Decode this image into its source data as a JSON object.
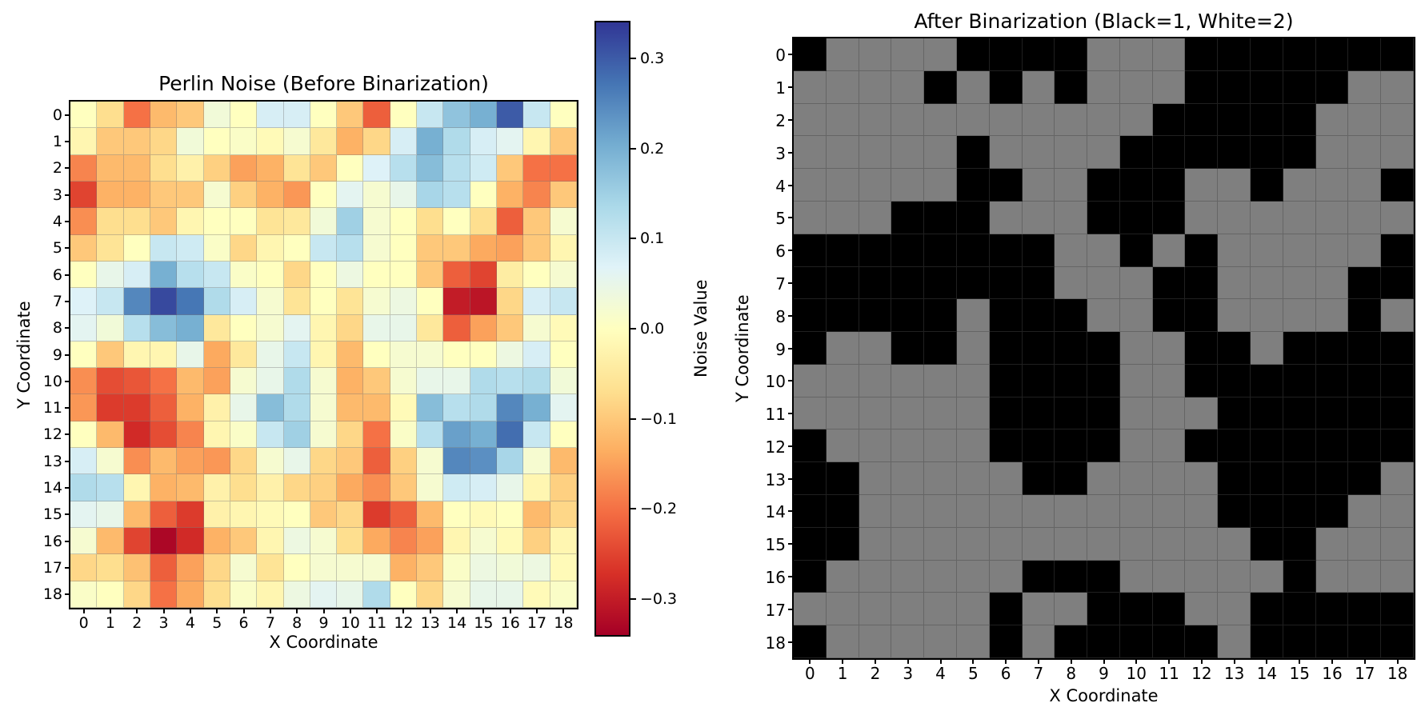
{
  "figure": {
    "background": "#ffffff"
  },
  "left_plot": {
    "title": "Perlin Noise (Before Binarization)",
    "xlabel": "X Coordinate",
    "ylabel": "Y Coordinate"
  },
  "right_plot": {
    "title": "After Binarization (Black=1, White=2)",
    "xlabel": "X Coordinate",
    "ylabel": "Y Coordinate"
  },
  "colorbar": {
    "label": "Noise Value",
    "vmin": -0.34,
    "vmax": 0.34,
    "tick_labels": [
      "0.3",
      "0.2",
      "0.1",
      "0.0",
      "−0.1",
      "−0.2",
      "−0.3"
    ],
    "tick_values": [
      0.3,
      0.2,
      0.1,
      0.0,
      -0.1,
      -0.2,
      -0.3
    ],
    "colors_low_to_high": [
      "#a50026",
      "#d73027",
      "#f46d43",
      "#fdae61",
      "#fee090",
      "#ffffbf",
      "#e0f3f8",
      "#abd9e9",
      "#74add1",
      "#4575b4",
      "#313695"
    ]
  },
  "chart_data": [
    {
      "type": "heatmap",
      "title": "Perlin Noise (Before Binarization)",
      "xlabel": "X Coordinate",
      "ylabel": "Y Coordinate",
      "x": [
        0,
        1,
        2,
        3,
        4,
        5,
        6,
        7,
        8,
        9,
        10,
        11,
        12,
        13,
        14,
        15,
        16,
        17,
        18
      ],
      "y": [
        0,
        1,
        2,
        3,
        4,
        5,
        6,
        7,
        8,
        9,
        10,
        11,
        12,
        13,
        14,
        15,
        16,
        17,
        18
      ],
      "colormap": "RdYlBu",
      "vmin": -0.34,
      "vmax": 0.34,
      "colorbar_label": "Noise Value",
      "values": [
        [
          0.0,
          -0.07,
          -0.2,
          -0.12,
          -0.1,
          0.03,
          0.0,
          0.08,
          0.08,
          0.0,
          -0.1,
          -0.22,
          0.0,
          0.1,
          0.17,
          0.2,
          0.3,
          0.1,
          0.0
        ],
        [
          -0.02,
          -0.1,
          -0.1,
          -0.08,
          0.03,
          0.0,
          0.01,
          -0.01,
          0.02,
          -0.05,
          -0.13,
          -0.08,
          0.08,
          0.2,
          0.13,
          0.08,
          0.06,
          -0.02,
          -0.1
        ],
        [
          -0.18,
          -0.12,
          -0.12,
          -0.07,
          -0.03,
          -0.09,
          -0.15,
          -0.13,
          -0.06,
          -0.1,
          0.0,
          0.07,
          0.12,
          0.18,
          0.12,
          0.09,
          -0.1,
          -0.2,
          -0.2
        ],
        [
          -0.25,
          -0.13,
          -0.13,
          -0.1,
          -0.1,
          0.02,
          -0.09,
          -0.13,
          -0.16,
          0.0,
          0.06,
          0.02,
          0.05,
          0.14,
          0.12,
          0.0,
          -0.13,
          -0.18,
          -0.1
        ],
        [
          -0.17,
          -0.07,
          -0.07,
          -0.1,
          -0.02,
          0.0,
          0.0,
          -0.06,
          -0.05,
          0.03,
          0.15,
          0.02,
          0.0,
          -0.07,
          0.0,
          -0.07,
          -0.22,
          -0.1,
          0.02
        ],
        [
          -0.1,
          -0.06,
          0.0,
          0.1,
          0.09,
          0.01,
          -0.08,
          -0.02,
          0.0,
          0.1,
          0.12,
          0.02,
          0.0,
          -0.1,
          -0.1,
          -0.14,
          -0.15,
          -0.1,
          -0.02
        ],
        [
          0.0,
          0.05,
          0.08,
          0.2,
          0.12,
          0.1,
          0.01,
          0.0,
          -0.08,
          0.0,
          0.04,
          0.0,
          0.0,
          -0.1,
          -0.22,
          -0.25,
          -0.04,
          0.0,
          0.02
        ],
        [
          0.07,
          0.1,
          0.25,
          0.32,
          0.27,
          0.13,
          0.08,
          0.02,
          -0.06,
          0.0,
          -0.06,
          0.02,
          0.04,
          0.0,
          -0.3,
          -0.31,
          -0.08,
          0.08,
          0.1
        ],
        [
          0.06,
          0.03,
          0.12,
          0.18,
          0.2,
          -0.05,
          0.0,
          0.02,
          0.06,
          -0.02,
          -0.08,
          0.05,
          0.05,
          -0.05,
          -0.22,
          -0.15,
          -0.1,
          0.02,
          -0.01
        ],
        [
          0.0,
          -0.1,
          -0.02,
          -0.02,
          0.05,
          -0.14,
          -0.05,
          0.05,
          0.1,
          -0.02,
          -0.12,
          0.0,
          0.02,
          0.02,
          0.0,
          0.0,
          0.04,
          0.08,
          0.0
        ],
        [
          -0.17,
          -0.24,
          -0.23,
          -0.2,
          -0.12,
          -0.15,
          0.02,
          0.05,
          0.13,
          0.02,
          -0.13,
          -0.1,
          0.02,
          0.05,
          0.05,
          0.13,
          0.12,
          0.13,
          0.03
        ],
        [
          -0.16,
          -0.26,
          -0.26,
          -0.22,
          -0.13,
          -0.03,
          0.05,
          0.18,
          0.13,
          0.02,
          -0.12,
          -0.12,
          -0.01,
          0.18,
          0.12,
          0.13,
          0.25,
          0.2,
          0.06
        ],
        [
          0.0,
          -0.12,
          -0.28,
          -0.24,
          -0.18,
          -0.02,
          0.01,
          0.1,
          0.15,
          0.02,
          -0.08,
          -0.2,
          0.01,
          0.12,
          0.22,
          0.2,
          0.28,
          0.1,
          0.0
        ],
        [
          0.08,
          0.02,
          -0.17,
          -0.12,
          -0.15,
          -0.16,
          -0.08,
          0.02,
          0.05,
          -0.08,
          -0.1,
          -0.22,
          -0.09,
          0.02,
          0.25,
          0.24,
          0.14,
          0.02,
          -0.12
        ],
        [
          0.13,
          0.12,
          -0.02,
          -0.13,
          -0.12,
          -0.03,
          -0.07,
          -0.03,
          -0.08,
          -0.09,
          -0.14,
          -0.17,
          -0.1,
          0.02,
          0.09,
          0.08,
          0.05,
          -0.02,
          -0.09
        ],
        [
          0.06,
          0.05,
          -0.12,
          -0.22,
          -0.26,
          -0.03,
          -0.02,
          -0.01,
          0.0,
          -0.1,
          -0.08,
          -0.26,
          -0.22,
          -0.12,
          0.0,
          -0.01,
          0.0,
          -0.12,
          -0.08
        ],
        [
          0.02,
          -0.12,
          -0.25,
          -0.33,
          -0.28,
          -0.13,
          -0.1,
          -0.02,
          0.04,
          0.02,
          -0.07,
          -0.14,
          -0.18,
          -0.15,
          -0.02,
          0.02,
          -0.01,
          -0.09,
          -0.02
        ],
        [
          -0.08,
          -0.07,
          -0.11,
          -0.22,
          -0.15,
          -0.08,
          0.02,
          -0.06,
          0.0,
          0.02,
          0.02,
          0.02,
          -0.13,
          -0.1,
          0.01,
          0.04,
          0.03,
          0.04,
          -0.01
        ],
        [
          0.01,
          0.0,
          -0.08,
          -0.2,
          -0.14,
          -0.07,
          0.01,
          -0.02,
          0.04,
          0.06,
          0.05,
          0.13,
          0.0,
          -0.08,
          0.02,
          0.05,
          0.05,
          -0.01,
          0.01
        ]
      ]
    },
    {
      "type": "heatmap",
      "title": "After Binarization (Black=1, White=2)",
      "xlabel": "X Coordinate",
      "ylabel": "Y Coordinate",
      "x": [
        0,
        1,
        2,
        3,
        4,
        5,
        6,
        7,
        8,
        9,
        10,
        11,
        12,
        13,
        14,
        15,
        16,
        17,
        18
      ],
      "y": [
        0,
        1,
        2,
        3,
        4,
        5,
        6,
        7,
        8,
        9,
        10,
        11,
        12,
        13,
        14,
        15,
        16,
        17,
        18
      ],
      "value_colors": {
        "1": "#000000",
        "2": "#7f7f7f"
      },
      "values": [
        [
          1,
          2,
          2,
          2,
          2,
          1,
          1,
          1,
          1,
          2,
          2,
          2,
          1,
          1,
          1,
          1,
          1,
          1,
          1
        ],
        [
          2,
          2,
          2,
          2,
          1,
          2,
          1,
          2,
          1,
          2,
          2,
          2,
          1,
          1,
          1,
          1,
          1,
          2,
          2
        ],
        [
          2,
          2,
          2,
          2,
          2,
          2,
          2,
          2,
          2,
          2,
          2,
          1,
          1,
          1,
          1,
          1,
          2,
          2,
          2
        ],
        [
          2,
          2,
          2,
          2,
          2,
          1,
          2,
          2,
          2,
          2,
          1,
          1,
          1,
          1,
          1,
          1,
          2,
          2,
          2
        ],
        [
          2,
          2,
          2,
          2,
          2,
          1,
          1,
          2,
          2,
          1,
          1,
          1,
          2,
          2,
          1,
          2,
          2,
          2,
          1
        ],
        [
          2,
          2,
          2,
          1,
          1,
          1,
          2,
          2,
          2,
          1,
          1,
          1,
          2,
          2,
          2,
          2,
          2,
          2,
          2
        ],
        [
          1,
          1,
          1,
          1,
          1,
          1,
          1,
          1,
          2,
          2,
          1,
          2,
          1,
          2,
          2,
          2,
          2,
          2,
          1
        ],
        [
          1,
          1,
          1,
          1,
          1,
          1,
          1,
          1,
          2,
          2,
          2,
          1,
          1,
          2,
          2,
          2,
          2,
          1,
          1
        ],
        [
          1,
          1,
          1,
          1,
          1,
          2,
          1,
          1,
          1,
          2,
          2,
          1,
          1,
          2,
          2,
          2,
          2,
          1,
          2
        ],
        [
          1,
          2,
          2,
          1,
          1,
          2,
          1,
          1,
          1,
          1,
          2,
          2,
          1,
          1,
          2,
          1,
          1,
          1,
          1
        ],
        [
          2,
          2,
          2,
          2,
          2,
          2,
          1,
          1,
          1,
          1,
          2,
          2,
          1,
          1,
          1,
          1,
          1,
          1,
          1
        ],
        [
          2,
          2,
          2,
          2,
          2,
          2,
          1,
          1,
          1,
          1,
          2,
          2,
          2,
          1,
          1,
          1,
          1,
          1,
          1
        ],
        [
          1,
          2,
          2,
          2,
          2,
          2,
          1,
          1,
          1,
          1,
          2,
          2,
          1,
          1,
          1,
          1,
          1,
          1,
          1
        ],
        [
          1,
          1,
          2,
          2,
          2,
          2,
          2,
          1,
          1,
          2,
          2,
          2,
          2,
          1,
          1,
          1,
          1,
          1,
          2
        ],
        [
          1,
          1,
          2,
          2,
          2,
          2,
          2,
          2,
          2,
          2,
          2,
          2,
          2,
          1,
          1,
          1,
          1,
          2,
          2
        ],
        [
          1,
          1,
          2,
          2,
          2,
          2,
          2,
          2,
          2,
          2,
          2,
          2,
          2,
          2,
          1,
          1,
          2,
          2,
          2
        ],
        [
          1,
          2,
          2,
          2,
          2,
          2,
          2,
          1,
          1,
          1,
          2,
          2,
          2,
          2,
          2,
          1,
          2,
          2,
          2
        ],
        [
          2,
          2,
          2,
          2,
          2,
          2,
          1,
          2,
          2,
          1,
          1,
          1,
          2,
          2,
          1,
          1,
          1,
          1,
          1
        ],
        [
          1,
          2,
          2,
          2,
          2,
          2,
          1,
          2,
          1,
          1,
          1,
          1,
          1,
          2,
          1,
          1,
          1,
          1,
          1
        ]
      ]
    }
  ]
}
